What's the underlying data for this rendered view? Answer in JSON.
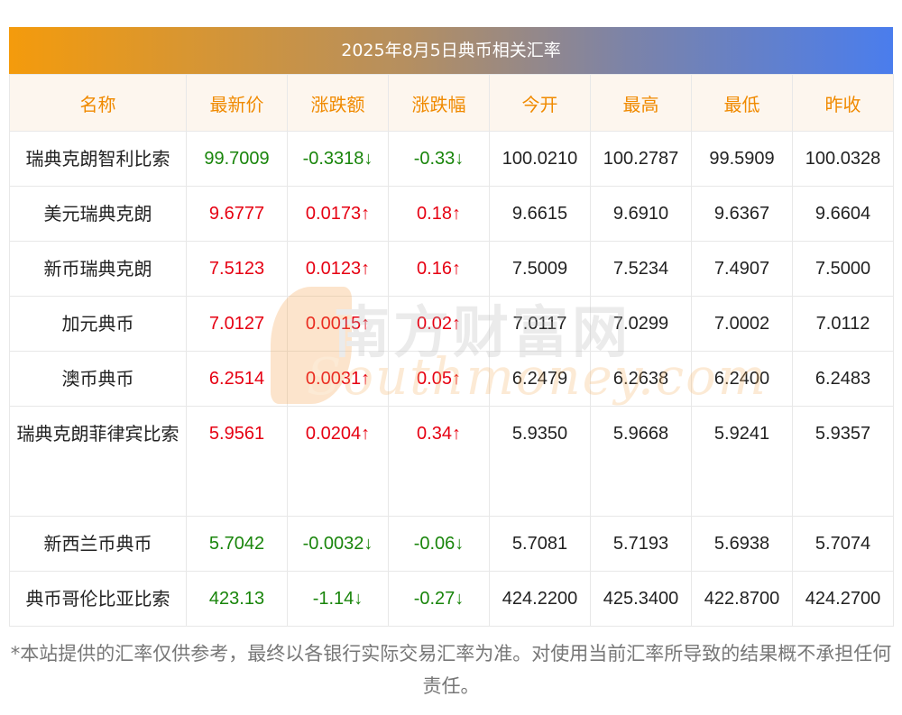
{
  "title": "2025年8月5日典币相关汇率",
  "headers": [
    "名称",
    "最新价",
    "涨跌额",
    "涨跌幅",
    "今开",
    "最高",
    "最低",
    "昨收"
  ],
  "rows": [
    {
      "name": "瑞典克朗智利比索",
      "latest": "99.7009",
      "change": "-0.3318↓",
      "pct": "-0.33↓",
      "open": "100.0210",
      "high": "100.2787",
      "low": "99.5909",
      "prev": "100.0328",
      "dir": "down"
    },
    {
      "name": "美元瑞典克朗",
      "latest": "9.6777",
      "change": "0.0173↑",
      "pct": "0.18↑",
      "open": "9.6615",
      "high": "9.6910",
      "low": "9.6367",
      "prev": "9.6604",
      "dir": "up"
    },
    {
      "name": "新币瑞典克朗",
      "latest": "7.5123",
      "change": "0.0123↑",
      "pct": "0.16↑",
      "open": "7.5009",
      "high": "7.5234",
      "low": "7.4907",
      "prev": "7.5000",
      "dir": "up"
    },
    {
      "name": "加元典币",
      "latest": "7.0127",
      "change": "0.0015↑",
      "pct": "0.02↑",
      "open": "7.0117",
      "high": "7.0299",
      "low": "7.0002",
      "prev": "7.0112",
      "dir": "up"
    },
    {
      "name": "澳币典币",
      "latest": "6.2514",
      "change": "0.0031↑",
      "pct": "0.05↑",
      "open": "6.2479",
      "high": "6.2638",
      "low": "6.2400",
      "prev": "6.2483",
      "dir": "up"
    },
    {
      "name": "瑞典克朗菲律宾比索",
      "latest": "5.9561",
      "change": "0.0204↑",
      "pct": "0.34↑",
      "open": "5.9350",
      "high": "5.9668",
      "low": "5.9241",
      "prev": "5.9357",
      "dir": "up"
    },
    {
      "name": "新西兰币典币",
      "latest": "5.7042",
      "change": "-0.0032↓",
      "pct": "-0.06↓",
      "open": "5.7081",
      "high": "5.7193",
      "low": "5.6938",
      "prev": "5.7074",
      "dir": "down"
    },
    {
      "name": "典币哥伦比亚比索",
      "latest": "423.13",
      "change": "-1.14↓",
      "pct": "-0.27↓",
      "open": "424.2200",
      "high": "425.3400",
      "low": "422.8700",
      "prev": "424.2700",
      "dir": "down"
    }
  ],
  "watermark": {
    "cn": "南方财富网",
    "en": "Southmoney.com"
  },
  "footnote": "*本站提供的汇率仅供参考，最终以各银行实际交易汇率为准。对使用当前汇率所导致的结果概不承担任何责任。",
  "colors": {
    "up": "#e60012",
    "down": "#19850b",
    "header_text": "#f08a00"
  }
}
